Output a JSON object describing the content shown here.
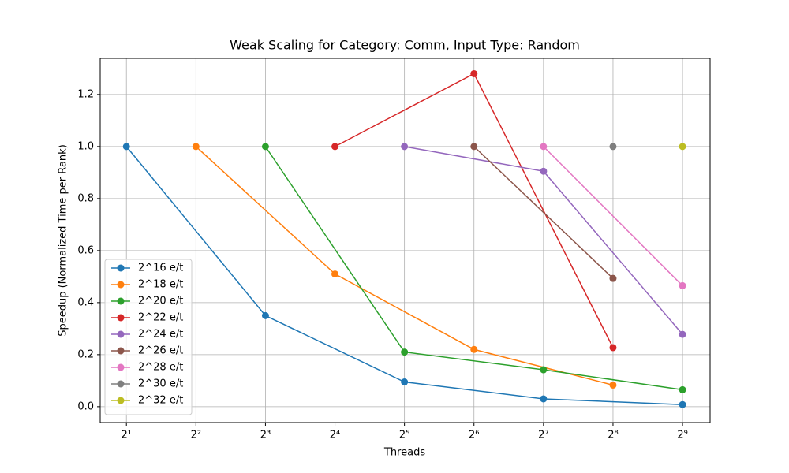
{
  "chart_data": {
    "type": "line",
    "title": "Weak Scaling for Category: Comm, Input Type: Random",
    "xlabel": "Threads",
    "ylabel": "Speedup (Normalized Time per Rank)",
    "xscale": "log2",
    "xlim": [
      1.54,
      674
    ],
    "ylim": [
      -0.061,
      1.339
    ],
    "xticks": [
      {
        "value": 2,
        "label": "2¹"
      },
      {
        "value": 4,
        "label": "2²"
      },
      {
        "value": 8,
        "label": "2³"
      },
      {
        "value": 16,
        "label": "2⁴"
      },
      {
        "value": 32,
        "label": "2⁵"
      },
      {
        "value": 64,
        "label": "2⁶"
      },
      {
        "value": 128,
        "label": "2⁷"
      },
      {
        "value": 256,
        "label": "2⁸"
      },
      {
        "value": 512,
        "label": "2⁹"
      }
    ],
    "yticks": [
      {
        "value": 0,
        "label": "0.0"
      },
      0.2,
      0.4,
      0.6,
      0.8,
      {
        "value": 1,
        "label": "1.0"
      },
      1.2
    ],
    "grid": true,
    "legend": "lower left",
    "series": [
      {
        "name": "2^16 e/t",
        "color": "#1f77b4",
        "x": [
          2,
          8,
          32,
          128,
          512
        ],
        "values": [
          1.0,
          0.35,
          0.095,
          0.03,
          0.008
        ]
      },
      {
        "name": "2^18 e/t",
        "color": "#ff7f0e",
        "x": [
          4,
          16,
          64,
          256
        ],
        "values": [
          1.0,
          0.51,
          0.22,
          0.083
        ]
      },
      {
        "name": "2^20 e/t",
        "color": "#2ca02c",
        "x": [
          8,
          32,
          128,
          512
        ],
        "values": [
          1.0,
          0.21,
          0.142,
          0.065
        ]
      },
      {
        "name": "2^22 e/t",
        "color": "#d62728",
        "x": [
          16,
          64,
          256
        ],
        "values": [
          1.0,
          1.28,
          0.227
        ]
      },
      {
        "name": "2^24 e/t",
        "color": "#9467bd",
        "x": [
          32,
          128,
          512
        ],
        "values": [
          1.0,
          0.905,
          0.278
        ]
      },
      {
        "name": "2^26 e/t",
        "color": "#8c564b",
        "x": [
          64,
          256
        ],
        "values": [
          1.0,
          0.493
        ]
      },
      {
        "name": "2^28 e/t",
        "color": "#e377c2",
        "x": [
          128,
          512
        ],
        "values": [
          1.0,
          0.465
        ]
      },
      {
        "name": "2^30 e/t",
        "color": "#7f7f7f",
        "x": [
          256
        ],
        "values": [
          1.0
        ]
      },
      {
        "name": "2^32 e/t",
        "color": "#bcbd22",
        "x": [
          512
        ],
        "values": [
          1.0
        ]
      }
    ]
  }
}
